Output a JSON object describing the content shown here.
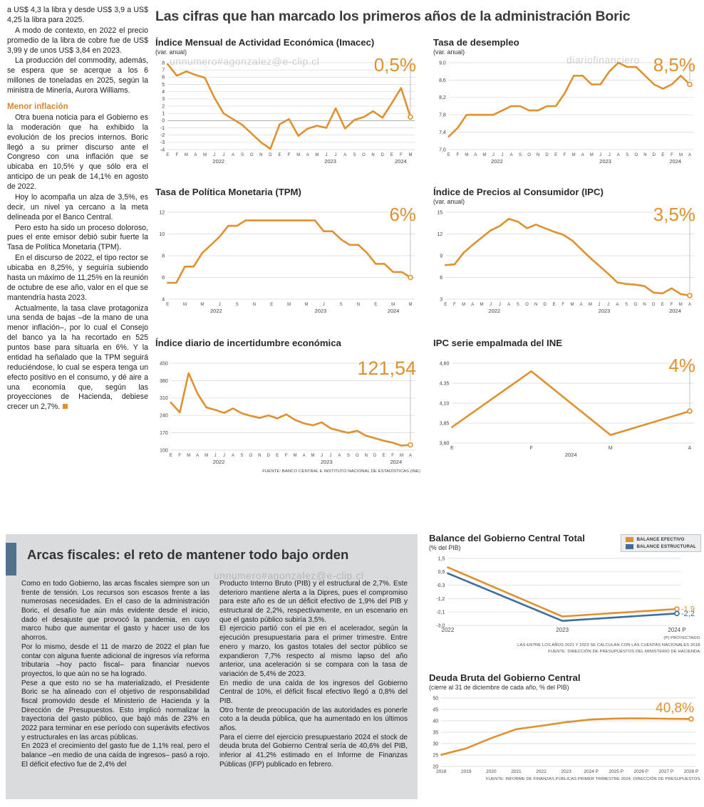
{
  "watermarks": [
    "unnumero#agonzalez@e-clip.cl",
    "diariofinanciero",
    "unnumero#agonzalez@e-clip.cl"
  ],
  "main_title": "Las cifras que han marcado los primeros años de la administración Boric",
  "left_column": {
    "subhead": "Menor inflación",
    "paragraphs": [
      "a US$ 4,3 la libra y desde US$ 3,9 a US$ 4,25 la libra para 2025.",
      "A modo de contexto, en 2022 el precio promedio de la libra de cobre fue de US$ 3,99 y de unos US$ 3,84 en 2023.",
      "La producción del commodity, además, se espera que se acerque a los 6 millones de toneladas en 2025, según la ministra de Minería, Aurora Williams.",
      "Otra buena noticia para el Gobierno es la moderación que ha exhibido la evolución de los precios internos. Boric llegó a su primer discurso ante el Congreso con una inflación que se ubicaba en 10,5% y que sólo era el anticipo de un peak de 14,1% en agosto de 2022.",
      "Hoy lo acompaña un alza de 3,5%, es decir, un nivel ya cercano a la meta delineada por el Banco Central.",
      "Pero esto ha sido un proceso doloroso, pues el ente emisor debió subir fuerte la Tasa de Política Monetaria (TPM).",
      "En el discurso de 2022, el tipo rector se ubicaba en 8,25%, y seguiría subiendo hasta un máximo de 11,25% en la reunión de octubre de ese año, valor en el que se mantendría hasta 2023.",
      "Actualmente, la tasa clave protagoniza una senda de bajas –de la mano de una menor inflación–, por lo cual el Consejo del banco ya la ha recortado en 525 puntos base para situarla en 6%. Y la entidad ha señalado que la TPM seguirá reduciéndose, lo cual se espera tenga un efecto positivo en el consumo, y dé aire a una economía que, según las proyecciones de Hacienda, debiese crecer un 2,7%."
    ]
  },
  "chart_data": [
    {
      "id": "imacec",
      "type": "line",
      "title": "Índice Mensual de Actividad Económica (Imacec)",
      "subtitle": "(var. anual)",
      "big_value": "0,5%",
      "y_ticks": [
        "8",
        "7",
        "6",
        "5",
        "4",
        "3",
        "2",
        "1",
        "0",
        "-1",
        "-2",
        "-3",
        "-4"
      ],
      "x_labels": [
        "E",
        "F",
        "M",
        "A",
        "M",
        "J",
        "J",
        "A",
        "S",
        "O",
        "N",
        "D",
        "E",
        "F",
        "M",
        "A",
        "M",
        "J",
        "J",
        "A",
        "S",
        "O",
        "N",
        "D",
        "E",
        "F",
        "M"
      ],
      "years": [
        {
          "label": "2022",
          "pos": 0.21
        },
        {
          "label": "2023",
          "pos": 0.67
        },
        {
          "label": "2024",
          "pos": 0.96
        }
      ],
      "series": [
        {
          "name": "Imacec",
          "color": "#E0912F",
          "values": [
            7.8,
            6.2,
            6.8,
            6.3,
            5.9,
            3.2,
            1.0,
            0.2,
            -0.6,
            -1.8,
            -3.0,
            -3.9,
            -0.5,
            0.2,
            -2.1,
            -1.1,
            -0.7,
            -1.0,
            1.7,
            -1.1,
            0.1,
            0.5,
            1.3,
            0.4,
            2.4,
            4.5,
            0.5
          ]
        }
      ]
    },
    {
      "id": "desempleo",
      "type": "line",
      "title": "Tasa de desempleo",
      "subtitle": "(var. anual)",
      "big_value": "8,5%",
      "y_ticks": [
        "9,0",
        "8,6",
        "8,2",
        "7,8",
        "7,4",
        "7,0"
      ],
      "x_labels": [
        "E",
        "F",
        "M",
        "A",
        "M",
        "J",
        "J",
        "A",
        "S",
        "O",
        "N",
        "D",
        "E",
        "F",
        "M",
        "A",
        "M",
        "J",
        "J",
        "A",
        "S",
        "O",
        "N",
        "D",
        "E",
        "F",
        "M",
        "A"
      ],
      "years": [
        {
          "label": "2022",
          "pos": 0.2
        },
        {
          "label": "2023",
          "pos": 0.65
        },
        {
          "label": "2024",
          "pos": 0.94
        }
      ],
      "series": [
        {
          "name": "Tasa de desempleo",
          "color": "#E0912F",
          "values": [
            7.3,
            7.5,
            7.8,
            7.8,
            7.8,
            7.8,
            7.9,
            8.0,
            8.0,
            7.9,
            7.9,
            8.0,
            8.0,
            8.3,
            8.7,
            8.7,
            8.5,
            8.5,
            8.8,
            9.0,
            8.9,
            8.9,
            8.7,
            8.5,
            8.4,
            8.5,
            8.7,
            8.5
          ]
        }
      ]
    },
    {
      "id": "tpm",
      "type": "line",
      "title": "Tasa de Política Monetaria (TPM)",
      "subtitle": "",
      "big_value": "6%",
      "y_ticks": [
        "12",
        "10",
        "8",
        "6",
        "4"
      ],
      "x_labels": [
        "E",
        "M",
        "M",
        "J",
        "S",
        "N",
        "E",
        "M",
        "M",
        "J",
        "S",
        "N",
        "E",
        "M",
        "M"
      ],
      "years": [
        {
          "label": "2022",
          "pos": 0.2
        },
        {
          "label": "2023",
          "pos": 0.63
        },
        {
          "label": "2024",
          "pos": 0.93
        }
      ],
      "series": [
        {
          "name": "TPM",
          "color": "#E0912F",
          "values": [
            5.5,
            5.5,
            7.0,
            7.0,
            8.25,
            9.0,
            9.75,
            10.75,
            10.75,
            11.25,
            11.25,
            11.25,
            11.25,
            11.25,
            11.25,
            11.25,
            11.25,
            11.25,
            10.25,
            10.25,
            9.5,
            9.0,
            9.0,
            8.25,
            7.25,
            7.25,
            6.5,
            6.5,
            6.0
          ]
        }
      ]
    },
    {
      "id": "ipc",
      "type": "line",
      "title": "Índice de Precios al Consumidor (IPC)",
      "subtitle": "(var. anual)",
      "big_value": "3,5%",
      "y_ticks": [
        "15",
        "12",
        "9",
        "6",
        "3"
      ],
      "x_labels": [
        "E",
        "F",
        "M",
        "A",
        "M",
        "J",
        "J",
        "A",
        "S",
        "O",
        "N",
        "D",
        "E",
        "F",
        "M",
        "A",
        "M",
        "J",
        "J",
        "A",
        "S",
        "O",
        "N",
        "D",
        "E",
        "F",
        "M",
        "A"
      ],
      "years": [
        {
          "label": "2022",
          "pos": 0.2
        },
        {
          "label": "2023",
          "pos": 0.65
        },
        {
          "label": "2024",
          "pos": 0.94
        }
      ],
      "series": [
        {
          "name": "IPC",
          "color": "#E0912F",
          "values": [
            7.7,
            7.8,
            9.4,
            10.5,
            11.5,
            12.5,
            13.1,
            14.1,
            13.7,
            12.8,
            13.3,
            12.8,
            12.3,
            11.9,
            11.1,
            9.9,
            8.7,
            7.6,
            6.5,
            5.3,
            5.1,
            5.0,
            4.8,
            3.9,
            3.8,
            4.5,
            3.7,
            3.5
          ]
        }
      ]
    },
    {
      "id": "incertidumbre",
      "type": "line",
      "title": "Índice diario de incertidumbre económica",
      "subtitle": "",
      "big_value": "121,54",
      "y_ticks": [
        "450",
        "380",
        "310",
        "240",
        "170",
        "100"
      ],
      "x_labels": [
        "E",
        "F",
        "M",
        "A",
        "M",
        "J",
        "J",
        "A",
        "S",
        "O",
        "N",
        "D",
        "E",
        "F",
        "M",
        "A",
        "M",
        "J",
        "J",
        "A",
        "S",
        "O",
        "N",
        "D",
        "E",
        "F",
        "M",
        "A"
      ],
      "years": [
        {
          "label": "2022",
          "pos": 0.2
        },
        {
          "label": "2023",
          "pos": 0.65
        },
        {
          "label": "2024",
          "pos": 0.94
        }
      ],
      "series": [
        {
          "name": "Incertidumbre económica",
          "color": "#E0912F",
          "values": [
            292,
            252,
            410,
            328,
            272,
            262,
            250,
            268,
            248,
            238,
            230,
            240,
            228,
            244,
            222,
            208,
            200,
            212,
            188,
            178,
            170,
            178,
            158,
            148,
            138,
            130,
            118,
            121.54
          ]
        }
      ],
      "source": "FUENTE: BANCO CENTRAL E INSTITUTO NACIONAL DE ESTADÍSTICAS (INE)"
    },
    {
      "id": "ipc_empalmada",
      "type": "line",
      "title": "IPC serie empalmada del INE",
      "subtitle": "",
      "big_value": "4%",
      "y_ticks": [
        "4,60",
        "4,35",
        "4,10",
        "3,85",
        "3,60"
      ],
      "x_labels": [
        "E",
        "F",
        "M",
        "A"
      ],
      "x_label_size": 7,
      "years": [
        {
          "label": "2024",
          "pos": 0.5
        }
      ],
      "series": [
        {
          "name": "IPC serie empalmada",
          "color": "#E0912F",
          "values": [
            3.8,
            4.5,
            3.7,
            4.0
          ]
        }
      ]
    },
    {
      "id": "balance_gobierno_central",
      "type": "line",
      "title": "Balance del Gobierno Central Total",
      "subtitle": "(% del PIB)",
      "y_ticks": [
        "1,5",
        "0,6",
        "-0,3",
        "-1,2",
        "-2,1",
        "-3,0"
      ],
      "x_labels": [
        "2022",
        "2023",
        "2024 P"
      ],
      "x_label_size": 8,
      "legend": [
        {
          "label": "BALANCE EFECTIVO",
          "color": "#E0912F"
        },
        {
          "label": "BALANCE ESTRUCTURAL",
          "color": "#3D6E9E"
        }
      ],
      "series": [
        {
          "name": "Balance efectivo",
          "color": "#E0912F",
          "values": [
            0.9,
            -2.4,
            -1.9
          ],
          "end_label": "-1,9"
        },
        {
          "name": "Balance estructural",
          "color": "#3D6E9E",
          "values": [
            0.5,
            -2.7,
            -2.2
          ],
          "end_label": "-2,2"
        }
      ],
      "footnotes": [
        "(P) PROYECTADO.",
        "LAS ENTRE LOS AÑOS 2021 Y 2023 SE CALCULAN CON LAS CUENTAS NACIONALES 2018.",
        "FUENTE: DIRECCIÓN DE PRESUPUESTOS DEL MINISTERIO DE HACIENDA."
      ]
    },
    {
      "id": "deuda_bruta",
      "type": "line",
      "title": "Deuda Bruta del Gobierno Central",
      "subtitle": "(cierre al 31 de diciembre de cada año, % del PIB)",
      "big_value": "40,8%",
      "pointer": false,
      "y_ticks": [
        "50",
        "45",
        "40",
        "35",
        "30",
        "25",
        "20"
      ],
      "x_labels": [
        "2018",
        "2019",
        "2020",
        "2021",
        "2022",
        "2023",
        "2024 P",
        "2025 P",
        "2026 P",
        "2027 P",
        "2028 P"
      ],
      "x_label_size": 6.5,
      "series": [
        {
          "name": "Deuda bruta",
          "color": "#E0912F",
          "values": [
            25.1,
            27.9,
            32.4,
            36.3,
            37.8,
            39.4,
            40.6,
            41.0,
            41.1,
            40.9,
            40.8
          ]
        }
      ],
      "footnotes": [
        "FUENTE: INFORME DE FINANZAS PÚBLICAS PRIMER TRIMESTRE 2024, DIRECCIÓN DE PRESUPUESTOS."
      ]
    }
  ],
  "fiscal": {
    "headline": "Arcas fiscales: el reto de mantener todo bajo orden",
    "col1": [
      "Como en todo Gobierno, las arcas fiscales siempre son un frente de tensión. Los recursos son escasos frente a las numerosas necesidades. En el caso de la administración Boric, el desafío fue aún más evidente desde el inicio, dado el desajuste que provocó la pandemia, en cuyo marco hubo que aumentar el gasto y hacer uso de los ahorros.",
      "Por lo mismo, desde el 11 de marzo de 2022 el plan fue contar con alguna fuente adicional de ingresos vía reforma tributaria –hoy pacto fiscal– para financiar nuevos proyectos, lo que aún no se ha logrado.",
      "Pese a que esto no se ha materializado, el Presidente Boric se ha alineado con el objetivo de responsabilidad fiscal promovido desde el Ministerio de Hacienda y la Dirección de Presupuestos. Esto implicó normalizar la trayectoria del gasto público, que bajó más de 23% en 2022 para terminar en ese período con superávits efectivos y estructurales en las arcas públicas.",
      "En 2023 el crecimiento del gasto fue de 1,1% real, pero el balance –en medio de una caída de ingresos– pasó a rojo. El déficit efectivo fue de 2,4% del"
    ],
    "col2": [
      "Producto Interno Bruto (PIB) y el estructural de 2,7%. Este deterioro mantiene alerta a la Dipres, pues el compromiso para este año es de un déficit efectivo de 1,9% del PIB y estructural de 2,2%, respectivamente, en un escenario en que el gasto público subiría 3,5%.",
      "El ejercicio partió con el pie en el acelerador, según la ejecución presupuestaria para el primer trimestre. Entre enero y marzo, los gastos totales del sector público se expandieron 7,7% respecto al mismo lapso del año anterior, una aceleración si se compara con la tasa de variación de 5,4% de 2023.",
      "En medio de una caída de los ingresos del Gobierno Central de 10%, el déficit fiscal efectivo llegó a 0,8% del PIB.",
      "Otro frente de preocupación de las autoridades es ponerle coto a la deuda pública, que ha aumentado en los últimos años.",
      "Para el cierre del ejercicio presupuestario 2024 el stock de deuda bruta del Gobierno Central sería de 40,6% del PIB, inferior al 41,2% estimado en el Informe de Finanzas Públicas (IFP) publicado en febrero."
    ]
  }
}
